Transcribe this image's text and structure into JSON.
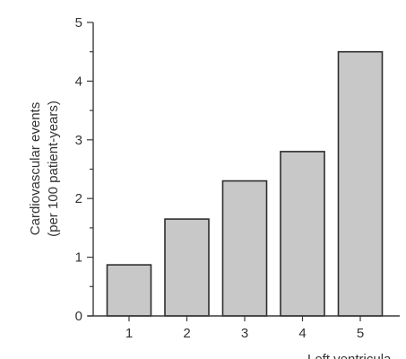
{
  "chart_data": {
    "type": "bar",
    "categories": [
      "1",
      "2",
      "3",
      "4",
      "5"
    ],
    "values": [
      0.87,
      1.65,
      2.3,
      2.8,
      4.5
    ],
    "title": "",
    "xlabel": "Left ventricula",
    "ylabel": "Cardiovascular events",
    "ylabel_line2": "(per 100 patient-years)",
    "ylim": [
      0,
      5
    ],
    "yticks": [
      0,
      1,
      2,
      3,
      4,
      5
    ],
    "grid": false,
    "bar_color": "#c8c8c8",
    "bar_edge_color": "#2e2e2e"
  }
}
